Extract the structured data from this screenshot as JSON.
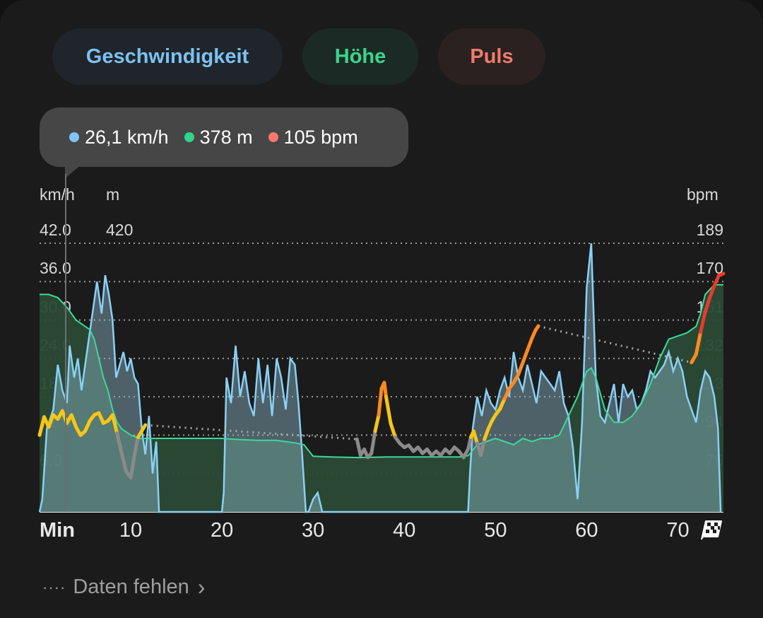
{
  "tabs": [
    {
      "label": "Geschwindigkeit",
      "color": "#7cc1f2"
    },
    {
      "label": "Höhe",
      "color": "#3ad68c"
    },
    {
      "label": "Puls",
      "color": "#f07b6a"
    }
  ],
  "tooltip": {
    "speed": "26,1 km/h",
    "speed_color": "#7ec4f8",
    "altitude": "378 m",
    "altitude_color": "#2ed68a",
    "heart_rate": "105 bpm",
    "heart_rate_color": "#f5796a"
  },
  "units": {
    "speed": "km/h",
    "altitude": "m",
    "heart_rate": "bpm",
    "time": "Min"
  },
  "footer": {
    "missing_label": "Daten fehlen",
    "chevron": "chevron-right-icon"
  },
  "chart_data": {
    "type": "area",
    "x_unit": "Min",
    "xlim": [
      0,
      75
    ],
    "x_ticks": [
      "10",
      "20",
      "30",
      "40",
      "50",
      "60",
      "70"
    ],
    "speed_axis": {
      "label": "km/h",
      "ticks": [
        "42.0",
        "36.0",
        "30.0",
        "24.0",
        "18.0",
        "12.0",
        "6.0"
      ],
      "ylim": [
        0,
        42
      ]
    },
    "altitude_axis": {
      "label": "m",
      "ticks": [
        "420"
      ]
    },
    "heart_rate_axis": {
      "label": "bpm",
      "ticks": [
        "189",
        "170",
        "151",
        "132",
        "113",
        "94",
        "75"
      ],
      "ylim": [
        56,
        189
      ]
    },
    "grid": true,
    "series": [
      {
        "name": "Geschwindigkeit",
        "color": "#8ad0f5",
        "unit": "km/h",
        "points": [
          [
            0,
            0
          ],
          [
            0.3,
            2
          ],
          [
            0.8,
            13
          ],
          [
            1.5,
            16
          ],
          [
            2,
            23
          ],
          [
            2.5,
            19
          ],
          [
            3,
            17
          ],
          [
            3.3,
            26
          ],
          [
            3.8,
            21
          ],
          [
            4.2,
            24
          ],
          [
            4.6,
            19
          ],
          [
            5.2,
            25
          ],
          [
            5.6,
            29
          ],
          [
            6,
            33
          ],
          [
            6.3,
            36
          ],
          [
            6.8,
            31
          ],
          [
            7.2,
            37
          ],
          [
            7.6,
            34
          ],
          [
            8,
            30
          ],
          [
            8.4,
            21
          ],
          [
            8.8,
            23
          ],
          [
            9.2,
            25
          ],
          [
            9.6,
            22
          ],
          [
            10,
            24
          ],
          [
            10.4,
            21
          ],
          [
            10.8,
            20
          ],
          [
            11.2,
            13
          ],
          [
            11.6,
            9
          ],
          [
            12,
            15
          ],
          [
            12.4,
            6
          ],
          [
            12.8,
            11
          ],
          [
            13.1,
            0
          ],
          [
            20,
            0
          ],
          [
            20.2,
            3
          ],
          [
            20.5,
            21
          ],
          [
            21,
            17
          ],
          [
            21.5,
            26
          ],
          [
            22,
            18
          ],
          [
            22.5,
            22
          ],
          [
            23,
            17
          ],
          [
            23.5,
            15
          ],
          [
            24,
            24
          ],
          [
            24.5,
            17
          ],
          [
            25,
            23
          ],
          [
            25.5,
            15
          ],
          [
            26,
            24
          ],
          [
            26.5,
            21
          ],
          [
            27,
            16
          ],
          [
            27.5,
            24
          ],
          [
            28,
            23
          ],
          [
            28.4,
            17
          ],
          [
            28.8,
            9
          ],
          [
            29.2,
            0
          ],
          [
            29.5,
            0
          ],
          [
            30,
            2
          ],
          [
            30.5,
            3
          ],
          [
            31,
            0
          ],
          [
            47,
            0
          ],
          [
            47.2,
            6
          ],
          [
            47.5,
            13
          ],
          [
            48,
            18
          ],
          [
            48.5,
            15
          ],
          [
            49,
            19
          ],
          [
            49.5,
            17
          ],
          [
            50,
            16
          ],
          [
            50.5,
            19
          ],
          [
            51,
            21
          ],
          [
            51.5,
            18
          ],
          [
            52,
            25
          ],
          [
            52.5,
            21
          ],
          [
            53,
            19
          ],
          [
            53.5,
            23
          ],
          [
            54,
            20
          ],
          [
            54.5,
            17
          ],
          [
            55,
            22
          ],
          [
            55.5,
            21
          ],
          [
            56,
            20
          ],
          [
            56.5,
            19
          ],
          [
            57,
            22
          ],
          [
            57.5,
            17
          ],
          [
            58,
            15
          ],
          [
            58.5,
            10
          ],
          [
            59,
            2
          ],
          [
            59.5,
            14
          ],
          [
            60,
            35
          ],
          [
            60.5,
            42
          ],
          [
            61,
            21
          ],
          [
            61.5,
            15
          ],
          [
            62,
            14
          ],
          [
            62.5,
            17
          ],
          [
            63,
            20
          ],
          [
            63.5,
            14
          ],
          [
            64,
            20
          ],
          [
            64.5,
            18
          ],
          [
            65,
            19
          ],
          [
            65.5,
            16
          ],
          [
            66,
            17
          ],
          [
            66.5,
            19
          ],
          [
            67,
            22
          ],
          [
            67.5,
            21
          ],
          [
            68,
            22
          ],
          [
            68.5,
            23
          ],
          [
            69,
            25
          ],
          [
            69.5,
            22
          ],
          [
            70,
            24
          ],
          [
            70.5,
            22
          ],
          [
            71,
            18
          ],
          [
            71.5,
            16
          ],
          [
            72,
            14
          ],
          [
            72.5,
            19
          ],
          [
            73,
            22
          ],
          [
            73.5,
            21
          ],
          [
            74,
            18
          ],
          [
            74.4,
            13
          ],
          [
            74.7,
            0
          ]
        ]
      },
      {
        "name": "Höhe",
        "color": "#2ed68a",
        "unit": "m",
        "points": [
          [
            0,
            34
          ],
          [
            1,
            34
          ],
          [
            2,
            33.5
          ],
          [
            3,
            32
          ],
          [
            4,
            30
          ],
          [
            5,
            29
          ],
          [
            5.5,
            28.5
          ],
          [
            6,
            27
          ],
          [
            6.5,
            24
          ],
          [
            7,
            21
          ],
          [
            7.5,
            19
          ],
          [
            8,
            16
          ],
          [
            8.5,
            14
          ],
          [
            9,
            13
          ],
          [
            10,
            12
          ],
          [
            11,
            11.5
          ],
          [
            12,
            11.5
          ],
          [
            14,
            11.5
          ],
          [
            16,
            11.5
          ],
          [
            18,
            11.5
          ],
          [
            20,
            11.5
          ],
          [
            22,
            11.3
          ],
          [
            24,
            11.2
          ],
          [
            26,
            11.2
          ],
          [
            28,
            10.8
          ],
          [
            29,
            10.5
          ],
          [
            30,
            8.7
          ],
          [
            32,
            8.6
          ],
          [
            35,
            8.5
          ],
          [
            38,
            8.6
          ],
          [
            40,
            8.6
          ],
          [
            42,
            8.6
          ],
          [
            44,
            8.6
          ],
          [
            46,
            8.6
          ],
          [
            47,
            8.8
          ],
          [
            48,
            10.5
          ],
          [
            49,
            11
          ],
          [
            50,
            11.5
          ],
          [
            51,
            11
          ],
          [
            52,
            10.5
          ],
          [
            53,
            11.5
          ],
          [
            54,
            11
          ],
          [
            55,
            11.5
          ],
          [
            56,
            11.5
          ],
          [
            57,
            12
          ],
          [
            58,
            15
          ],
          [
            59,
            18
          ],
          [
            59.5,
            20
          ],
          [
            60,
            22
          ],
          [
            60.5,
            22.5
          ],
          [
            61,
            21
          ],
          [
            62,
            16
          ],
          [
            63,
            14
          ],
          [
            64,
            14
          ],
          [
            65,
            15
          ],
          [
            66,
            17
          ],
          [
            67,
            20
          ],
          [
            68,
            24
          ],
          [
            69,
            27
          ],
          [
            70,
            27.5
          ],
          [
            71,
            28
          ],
          [
            72,
            29
          ],
          [
            72.5,
            31
          ],
          [
            73,
            34
          ],
          [
            74,
            35.5
          ],
          [
            75,
            35.5
          ]
        ]
      },
      {
        "name": "Puls",
        "color": "#f5c518",
        "unit": "bpm",
        "points": [
          [
            0,
            94
          ],
          [
            0.5,
            103
          ],
          [
            1,
            98
          ],
          [
            1.5,
            104
          ],
          [
            2,
            102
          ],
          [
            2.5,
            106
          ],
          [
            3,
            100
          ],
          [
            3.5,
            104
          ],
          [
            4,
            98
          ],
          [
            4.5,
            94
          ],
          [
            5,
            96
          ],
          [
            5.5,
            101
          ],
          [
            6,
            104
          ],
          [
            6.5,
            105
          ],
          [
            7,
            100
          ],
          [
            7.5,
            101
          ],
          [
            8,
            104
          ],
          [
            8.5,
            95
          ],
          [
            9,
            85
          ],
          [
            9.5,
            76
          ],
          [
            10,
            73
          ],
          [
            10.4,
            84
          ],
          [
            10.8,
            93
          ],
          [
            11.2,
            96
          ],
          [
            11.6,
            99
          ],
          [
            34.8,
            92
          ],
          [
            35.2,
            84
          ],
          [
            35.6,
            87
          ],
          [
            36,
            83
          ],
          [
            36.4,
            85
          ],
          [
            36.8,
            96
          ],
          [
            37.2,
            104
          ],
          [
            37.5,
            117
          ],
          [
            37.8,
            120
          ],
          [
            38,
            113
          ],
          [
            38.5,
            100
          ],
          [
            39,
            93
          ],
          [
            39.5,
            90
          ],
          [
            40,
            88
          ],
          [
            40.5,
            89
          ],
          [
            41,
            86
          ],
          [
            41.5,
            88
          ],
          [
            42,
            85
          ],
          [
            42.5,
            87
          ],
          [
            43,
            84
          ],
          [
            43.5,
            86
          ],
          [
            44,
            84
          ],
          [
            44.5,
            87
          ],
          [
            45,
            85
          ],
          [
            45.5,
            88
          ],
          [
            46,
            86
          ],
          [
            46.5,
            83
          ],
          [
            47,
            87
          ],
          [
            47.3,
            93
          ],
          [
            47.6,
            96
          ],
          [
            48,
            90
          ],
          [
            48.4,
            84
          ],
          [
            48.8,
            92
          ],
          [
            49.2,
            97
          ],
          [
            49.6,
            101
          ],
          [
            50,
            104
          ],
          [
            50.5,
            107
          ],
          [
            51,
            112
          ],
          [
            51.5,
            117
          ],
          [
            52,
            120
          ],
          [
            52.5,
            124
          ],
          [
            53,
            130
          ],
          [
            53.5,
            136
          ],
          [
            54,
            142
          ],
          [
            54.4,
            146
          ],
          [
            54.7,
            148
          ],
          [
            71.5,
            130
          ],
          [
            72,
            134
          ],
          [
            72.5,
            145
          ],
          [
            73,
            155
          ],
          [
            73.5,
            162
          ],
          [
            74,
            168
          ],
          [
            74.5,
            173
          ],
          [
            75,
            174
          ]
        ]
      }
    ]
  }
}
